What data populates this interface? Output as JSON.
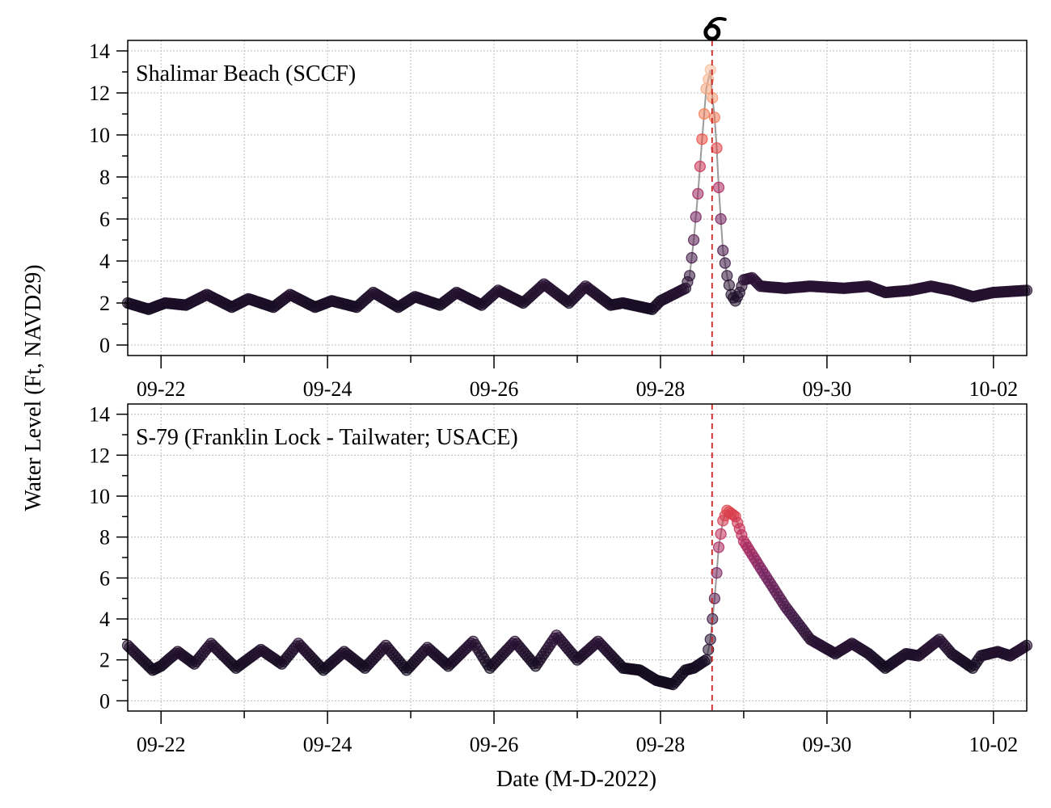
{
  "figure": {
    "ylabel": "Water Level (Ft, NAVD29)",
    "xlabel": "Date (M-D-2022)",
    "hurricane_icon": "hurricane-icon",
    "landfall_line_color": "#cc2222"
  },
  "chart_data": [
    {
      "type": "scatter",
      "title": "Shalimar Beach (SCCF)",
      "xlabel": "",
      "ylabel": "Water Level (Ft, NAVD29)",
      "x_unit": "day of Sept 2022",
      "xlim": [
        21.6,
        32.4
      ],
      "ylim": [
        -0.5,
        14.5
      ],
      "yticks": [
        0,
        2,
        4,
        6,
        8,
        10,
        12,
        14
      ],
      "xticks": [
        22,
        24,
        26,
        28,
        30,
        32
      ],
      "xtick_labels": [
        "09-22",
        "09-24",
        "09-26",
        "09-28",
        "09-30",
        "10-02"
      ],
      "grid": true,
      "landfall_x": 28.62,
      "series": [
        {
          "x": [
            21.6,
            21.85,
            22.05,
            22.3,
            22.55,
            22.85,
            23.05,
            23.35,
            23.55,
            23.85,
            24.05,
            24.35,
            24.55,
            24.85,
            25.05,
            25.35,
            25.55,
            25.85,
            26.05,
            26.35,
            26.6,
            26.9,
            27.1,
            27.4,
            27.55,
            27.9,
            28.0,
            28.15,
            28.3,
            28.35,
            28.4,
            28.45,
            28.5,
            28.55,
            28.6,
            28.63,
            28.66,
            28.7,
            28.75,
            28.8,
            28.85,
            28.9,
            28.95,
            29.0,
            29.1,
            29.2,
            29.5,
            29.8,
            30.2,
            30.5,
            30.7,
            31.0,
            31.25,
            31.5,
            31.75,
            32.0,
            32.4
          ],
          "y": [
            2.0,
            1.7,
            2.0,
            1.9,
            2.4,
            1.8,
            2.2,
            1.8,
            2.4,
            1.8,
            2.1,
            1.8,
            2.5,
            1.8,
            2.3,
            1.9,
            2.5,
            1.9,
            2.6,
            2.0,
            2.9,
            2.0,
            2.8,
            1.9,
            2.0,
            1.7,
            2.1,
            2.4,
            2.7,
            3.3,
            5.0,
            7.2,
            9.8,
            12.2,
            13.1,
            11.5,
            10.5,
            7.5,
            4.5,
            3.3,
            2.4,
            2.1,
            2.5,
            3.1,
            3.2,
            2.8,
            2.7,
            2.8,
            2.7,
            2.8,
            2.5,
            2.6,
            2.8,
            2.6,
            2.3,
            2.5,
            2.6
          ]
        }
      ]
    },
    {
      "type": "scatter",
      "title": "S-79 (Franklin Lock - Tailwater; USACE)",
      "xlabel": "Date (M-D-2022)",
      "ylabel": "Water Level (Ft, NAVD29)",
      "x_unit": "day of Sept 2022",
      "xlim": [
        21.6,
        32.4
      ],
      "ylim": [
        -0.5,
        14.5
      ],
      "yticks": [
        0,
        2,
        4,
        6,
        8,
        10,
        12,
        14
      ],
      "xticks": [
        22,
        24,
        26,
        28,
        30,
        32
      ],
      "xtick_labels": [
        "09-22",
        "09-24",
        "09-26",
        "09-28",
        "09-30",
        "10-02"
      ],
      "grid": true,
      "landfall_x": 28.62,
      "series": [
        {
          "x": [
            21.6,
            21.9,
            22.0,
            22.2,
            22.4,
            22.6,
            22.9,
            23.2,
            23.45,
            23.65,
            23.95,
            24.2,
            24.45,
            24.7,
            24.95,
            25.2,
            25.45,
            25.75,
            25.95,
            26.25,
            26.5,
            26.75,
            27.0,
            27.25,
            27.55,
            27.75,
            27.95,
            28.15,
            28.3,
            28.4,
            28.55,
            28.6,
            28.65,
            28.7,
            28.75,
            28.8,
            28.9,
            29.0,
            29.2,
            29.5,
            29.8,
            30.1,
            30.3,
            30.5,
            30.7,
            30.95,
            31.1,
            31.35,
            31.5,
            31.75,
            31.85,
            32.05,
            32.2,
            32.4
          ],
          "y": [
            2.7,
            1.5,
            1.7,
            2.4,
            1.8,
            2.8,
            1.6,
            2.5,
            1.8,
            2.8,
            1.5,
            2.4,
            1.6,
            2.7,
            1.5,
            2.6,
            1.7,
            2.9,
            1.6,
            2.9,
            1.7,
            3.2,
            2.0,
            2.9,
            1.6,
            1.5,
            1.0,
            0.8,
            1.5,
            1.6,
            2.0,
            3.0,
            5.0,
            7.5,
            8.8,
            9.3,
            9.0,
            7.8,
            6.5,
            4.6,
            3.0,
            2.3,
            2.8,
            2.3,
            1.6,
            2.3,
            2.2,
            3.0,
            2.3,
            1.6,
            2.2,
            2.4,
            2.2,
            2.7
          ]
        }
      ]
    }
  ]
}
